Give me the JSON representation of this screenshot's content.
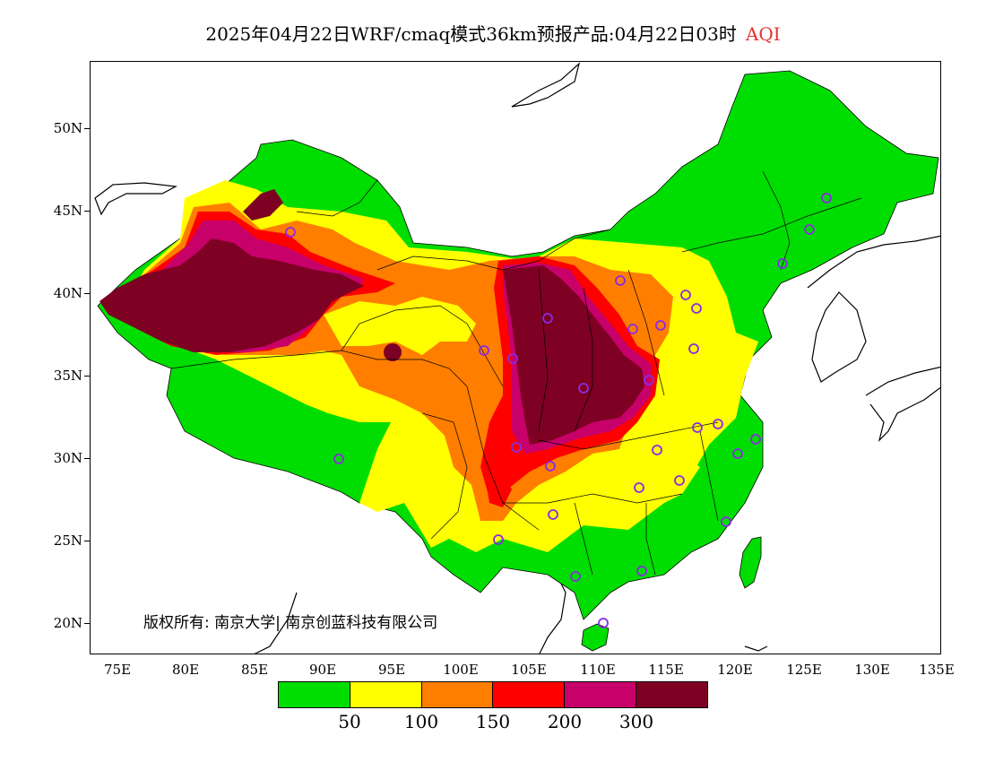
{
  "title": {
    "main": "2025年04月22日WRF/cmaq模式36km预报产品:04月22日03时",
    "product": "AQI"
  },
  "y_axis": [
    "50N",
    "45N",
    "40N",
    "35N",
    "30N",
    "25N",
    "20N"
  ],
  "x_axis": [
    "75E",
    "80E",
    "85E",
    "90E",
    "95E",
    "100E",
    "105E",
    "110E",
    "115E",
    "120E",
    "125E",
    "130E",
    "135E"
  ],
  "copyright": "版权所有: 南京大学| 南京创蓝科技有限公司",
  "legend": {
    "colors": [
      "#00dd00",
      "#ffff00",
      "#ff7e00",
      "#ff0000",
      "#c8006a",
      "#7e0023"
    ],
    "levels": [
      "50",
      "100",
      "150",
      "200",
      "300"
    ]
  },
  "colors": {
    "good": "#00dd00",
    "moderate": "#ffff00",
    "usg": "#ff7e00",
    "unhealthy": "#ff0000",
    "very_unhealthy": "#c8006a",
    "hazardous": "#7e0023",
    "title_accent": "#e8312f",
    "city_marker": "#8a2be2"
  }
}
